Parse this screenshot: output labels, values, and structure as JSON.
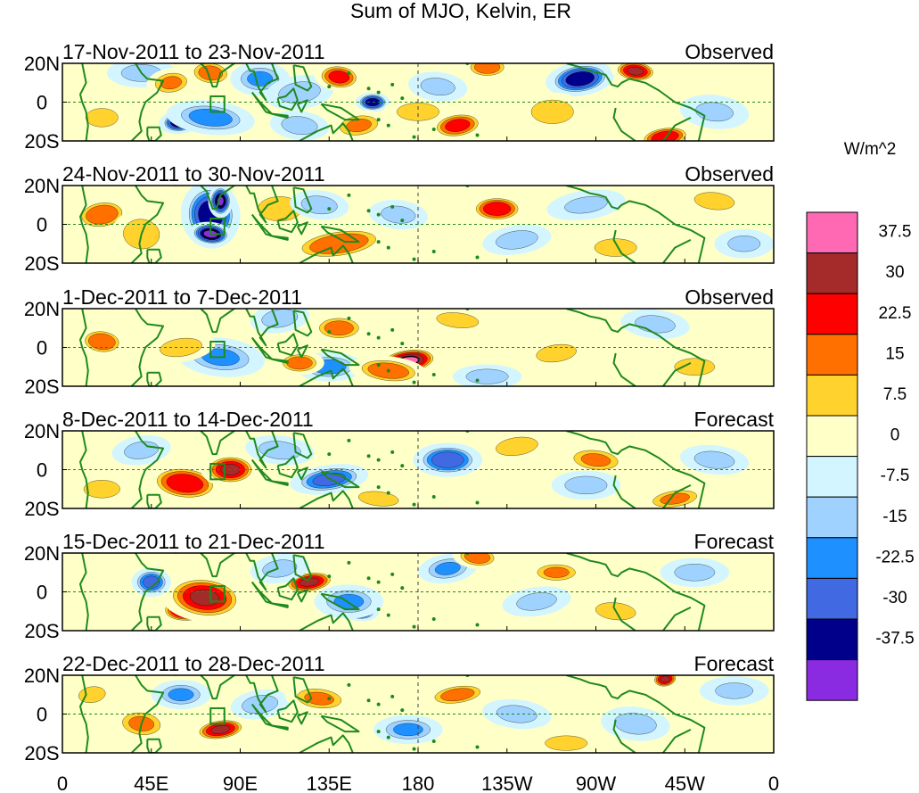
{
  "chart_data": {
    "type": "heatmap",
    "title": "Sum of MJO, Kelvin, ER",
    "colorbar": {
      "unit": "W/m^2",
      "labels": [
        "37.5",
        "30",
        "22.5",
        "15",
        "7.5",
        "0",
        "-7.5",
        "-15",
        "-22.5",
        "-30",
        "-37.5"
      ],
      "colors": [
        "#ff69b4",
        "#a52a2a",
        "#ff0000",
        "#ff7000",
        "#ffd22d",
        "#ffffc8",
        "#d2f5ff",
        "#a0d2ff",
        "#1e90ff",
        "#4169e1",
        "#00008b",
        "#8a2be2"
      ]
    },
    "x_ticks": [
      "0",
      "45E",
      "90E",
      "135E",
      "180",
      "135W",
      "90W",
      "45W",
      "0"
    ],
    "x_range": [
      0,
      360
    ],
    "y_ticks": [
      "20N",
      "0",
      "20S"
    ],
    "y_range": [
      -20,
      20
    ],
    "panels": [
      {
        "period": "17-Nov-2011 to 23-Nov-2011",
        "status": "Observed"
      },
      {
        "period": "24-Nov-2011 to 30-Nov-2011",
        "status": "Observed"
      },
      {
        "period": "1-Dec-2011 to 7-Dec-2011",
        "status": "Observed"
      },
      {
        "period": "8-Dec-2011 to 14-Dec-2011",
        "status": "Forecast"
      },
      {
        "period": "15-Dec-2011 to 21-Dec-2011",
        "status": "Forecast"
      },
      {
        "period": "22-Dec-2011 to 28-Dec-2011",
        "status": "Forecast"
      }
    ],
    "anomalies": [
      [
        {
          "lon": 60,
          "lat": -10,
          "v": -40,
          "a": 9,
          "b": 5
        },
        {
          "lon": 75,
          "lat": -8,
          "v": -18,
          "a": 18,
          "b": 7
        },
        {
          "lon": 40,
          "lat": 15,
          "v": -10,
          "a": 14,
          "b": 6
        },
        {
          "lon": 55,
          "lat": 10,
          "v": 15,
          "a": 10,
          "b": 6
        },
        {
          "lon": 75,
          "lat": 15,
          "v": 18,
          "a": 10,
          "b": 6
        },
        {
          "lon": 100,
          "lat": 12,
          "v": -15,
          "a": 12,
          "b": 7
        },
        {
          "lon": 120,
          "lat": 5,
          "v": -12,
          "a": 14,
          "b": 7
        },
        {
          "lon": 140,
          "lat": 13,
          "v": 25,
          "a": 10,
          "b": 6
        },
        {
          "lon": 157,
          "lat": 0,
          "v": -35,
          "a": 7,
          "b": 4
        },
        {
          "lon": 150,
          "lat": -12,
          "v": 15,
          "a": 12,
          "b": 6
        },
        {
          "lon": 120,
          "lat": -12,
          "v": -12,
          "a": 12,
          "b": 6
        },
        {
          "lon": 180,
          "lat": -5,
          "v": 12,
          "a": 14,
          "b": 6
        },
        {
          "lon": 200,
          "lat": -12,
          "v": 25,
          "a": 12,
          "b": 6
        },
        {
          "lon": 190,
          "lat": 8,
          "v": -10,
          "a": 12,
          "b": 6
        },
        {
          "lon": 215,
          "lat": 18,
          "v": 20,
          "a": 10,
          "b": 5
        },
        {
          "lon": 262,
          "lat": 12,
          "v": -35,
          "a": 14,
          "b": 7
        },
        {
          "lon": 290,
          "lat": 16,
          "v": 30,
          "a": 10,
          "b": 5
        },
        {
          "lon": 248,
          "lat": -5,
          "v": 12,
          "a": 14,
          "b": 8
        },
        {
          "lon": 305,
          "lat": -18,
          "v": 28,
          "a": 12,
          "b": 5
        },
        {
          "lon": 330,
          "lat": -5,
          "v": -8,
          "a": 14,
          "b": 7
        },
        {
          "lon": 20,
          "lat": -8,
          "v": 8,
          "a": 12,
          "b": 7
        }
      ],
      [
        {
          "lon": 75,
          "lat": 5,
          "v": -35,
          "a": 12,
          "b": 14
        },
        {
          "lon": 75,
          "lat": -5,
          "v": -40,
          "a": 9,
          "b": 5
        },
        {
          "lon": 80,
          "lat": 12,
          "v": -38,
          "a": 5,
          "b": 7
        },
        {
          "lon": 20,
          "lat": 5,
          "v": 22,
          "a": 12,
          "b": 7
        },
        {
          "lon": 40,
          "lat": -5,
          "v": 12,
          "a": 12,
          "b": 10
        },
        {
          "lon": 110,
          "lat": 8,
          "v": 14,
          "a": 14,
          "b": 8
        },
        {
          "lon": 140,
          "lat": -10,
          "v": 22,
          "a": 22,
          "b": 7
        },
        {
          "lon": 130,
          "lat": 10,
          "v": -12,
          "a": 12,
          "b": 6
        },
        {
          "lon": 220,
          "lat": 8,
          "v": 28,
          "a": 12,
          "b": 6
        },
        {
          "lon": 230,
          "lat": -8,
          "v": -12,
          "a": 14,
          "b": 6
        },
        {
          "lon": 170,
          "lat": 5,
          "v": -10,
          "a": 12,
          "b": 6
        },
        {
          "lon": 280,
          "lat": -12,
          "v": 12,
          "a": 14,
          "b": 6
        },
        {
          "lon": 265,
          "lat": 10,
          "v": -8,
          "a": 16,
          "b": 6
        },
        {
          "lon": 330,
          "lat": 12,
          "v": 10,
          "a": 14,
          "b": 6
        },
        {
          "lon": 345,
          "lat": -10,
          "v": -8,
          "a": 12,
          "b": 6
        }
      ],
      [
        {
          "lon": 90,
          "lat": -7,
          "v": -40,
          "a": 9,
          "b": 5
        },
        {
          "lon": 80,
          "lat": -5,
          "v": -15,
          "a": 18,
          "b": 8
        },
        {
          "lon": 135,
          "lat": -10,
          "v": -18,
          "a": 14,
          "b": 6
        },
        {
          "lon": 175,
          "lat": -7,
          "v": 38,
          "a": 14,
          "b": 6
        },
        {
          "lon": 165,
          "lat": -12,
          "v": 20,
          "a": 16,
          "b": 6
        },
        {
          "lon": 120,
          "lat": -8,
          "v": 20,
          "a": 10,
          "b": 5
        },
        {
          "lon": 60,
          "lat": 0,
          "v": 12,
          "a": 14,
          "b": 6
        },
        {
          "lon": 20,
          "lat": 3,
          "v": 22,
          "a": 10,
          "b": 6
        },
        {
          "lon": 140,
          "lat": 10,
          "v": 18,
          "a": 12,
          "b": 6
        },
        {
          "lon": 110,
          "lat": 15,
          "v": -12,
          "a": 12,
          "b": 6
        },
        {
          "lon": 200,
          "lat": 14,
          "v": 12,
          "a": 14,
          "b": 5
        },
        {
          "lon": 215,
          "lat": -15,
          "v": -12,
          "a": 14,
          "b": 5
        },
        {
          "lon": 250,
          "lat": -3,
          "v": 10,
          "a": 14,
          "b": 6
        },
        {
          "lon": 300,
          "lat": 12,
          "v": -10,
          "a": 14,
          "b": 6
        },
        {
          "lon": 320,
          "lat": -10,
          "v": 10,
          "a": 14,
          "b": 6
        }
      ],
      [
        {
          "lon": 62,
          "lat": -7,
          "v": 45,
          "a": 9,
          "b": 5
        },
        {
          "lon": 62,
          "lat": -7,
          "v": 28,
          "a": 16,
          "b": 8
        },
        {
          "lon": 85,
          "lat": 0,
          "v": 30,
          "a": 12,
          "b": 7
        },
        {
          "lon": 135,
          "lat": -5,
          "v": -25,
          "a": 16,
          "b": 6
        },
        {
          "lon": 110,
          "lat": 10,
          "v": -12,
          "a": 14,
          "b": 6
        },
        {
          "lon": 195,
          "lat": 5,
          "v": -28,
          "a": 14,
          "b": 7
        },
        {
          "lon": 230,
          "lat": 12,
          "v": 12,
          "a": 14,
          "b": 6
        },
        {
          "lon": 270,
          "lat": 5,
          "v": 15,
          "a": 14,
          "b": 6
        },
        {
          "lon": 265,
          "lat": -8,
          "v": -12,
          "a": 14,
          "b": 6
        },
        {
          "lon": 310,
          "lat": -15,
          "v": 15,
          "a": 14,
          "b": 5
        },
        {
          "lon": 330,
          "lat": 5,
          "v": -10,
          "a": 14,
          "b": 6
        },
        {
          "lon": 20,
          "lat": -10,
          "v": 12,
          "a": 12,
          "b": 6
        },
        {
          "lon": 40,
          "lat": 10,
          "v": -10,
          "a": 12,
          "b": 6
        },
        {
          "lon": 160,
          "lat": -15,
          "v": 10,
          "a": 14,
          "b": 5
        }
      ],
      [
        {
          "lon": 65,
          "lat": -8,
          "v": 45,
          "a": 14,
          "b": 7
        },
        {
          "lon": 72,
          "lat": -3,
          "v": 30,
          "a": 18,
          "b": 10
        },
        {
          "lon": 45,
          "lat": 5,
          "v": -25,
          "a": 8,
          "b": 6
        },
        {
          "lon": 125,
          "lat": 5,
          "v": 30,
          "a": 12,
          "b": 5
        },
        {
          "lon": 150,
          "lat": -10,
          "v": -38,
          "a": 8,
          "b": 4
        },
        {
          "lon": 145,
          "lat": -5,
          "v": -15,
          "a": 14,
          "b": 7
        },
        {
          "lon": 195,
          "lat": 12,
          "v": -15,
          "a": 12,
          "b": 6
        },
        {
          "lon": 210,
          "lat": 18,
          "v": 20,
          "a": 10,
          "b": 5
        },
        {
          "lon": 250,
          "lat": 10,
          "v": 15,
          "a": 12,
          "b": 5
        },
        {
          "lon": 240,
          "lat": -5,
          "v": -10,
          "a": 14,
          "b": 6
        },
        {
          "lon": 280,
          "lat": -10,
          "v": 10,
          "a": 14,
          "b": 6
        },
        {
          "lon": 320,
          "lat": 10,
          "v": -10,
          "a": 14,
          "b": 6
        },
        {
          "lon": 110,
          "lat": 12,
          "v": -10,
          "a": 12,
          "b": 6
        }
      ],
      [
        {
          "lon": 80,
          "lat": -8,
          "v": 30,
          "a": 12,
          "b": 5
        },
        {
          "lon": 40,
          "lat": -5,
          "v": 15,
          "a": 12,
          "b": 7
        },
        {
          "lon": 60,
          "lat": 10,
          "v": -15,
          "a": 12,
          "b": 6
        },
        {
          "lon": 100,
          "lat": 5,
          "v": -12,
          "a": 12,
          "b": 6
        },
        {
          "lon": 130,
          "lat": 8,
          "v": 15,
          "a": 14,
          "b": 6
        },
        {
          "lon": 175,
          "lat": -8,
          "v": -15,
          "a": 14,
          "b": 6
        },
        {
          "lon": 200,
          "lat": 10,
          "v": 18,
          "a": 14,
          "b": 5
        },
        {
          "lon": 230,
          "lat": 0,
          "v": -10,
          "a": 14,
          "b": 6
        },
        {
          "lon": 255,
          "lat": -15,
          "v": 12,
          "a": 14,
          "b": 5
        },
        {
          "lon": 305,
          "lat": 18,
          "v": 30,
          "a": 6,
          "b": 4
        },
        {
          "lon": 290,
          "lat": -5,
          "v": -12,
          "a": 14,
          "b": 7
        },
        {
          "lon": 340,
          "lat": 12,
          "v": -8,
          "a": 14,
          "b": 6
        },
        {
          "lon": 15,
          "lat": 10,
          "v": 8,
          "a": 10,
          "b": 6
        }
      ]
    ]
  }
}
